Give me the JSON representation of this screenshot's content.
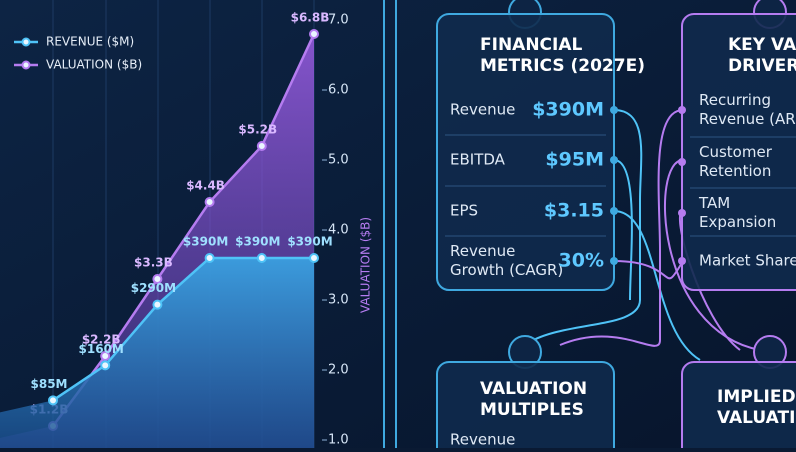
{
  "chart_data": {
    "type": "line",
    "categories": [
      null,
      null,
      null,
      null,
      null,
      null
    ],
    "series": [
      {
        "name": "REVENUE ($M)",
        "color": "#4fc3f7",
        "values": [
          85,
          160,
          290,
          390,
          390,
          390
        ],
        "value_labels": [
          "$85M",
          "$160M",
          "$290M",
          "$390M",
          "$390M",
          "$390M"
        ]
      },
      {
        "name": "VALUATION ($B)",
        "color": "#b57cf0",
        "axis": "y2",
        "values": [
          1.2,
          2.2,
          3.3,
          4.4,
          5.2,
          6.8
        ],
        "value_labels": [
          "$1.2B",
          "$2.2B",
          "$3.3B",
          "$4.4B",
          "$5.2B",
          "$6.8B"
        ]
      }
    ],
    "ylim": [
      0,
      900
    ],
    "y2lim": [
      1,
      7
    ],
    "y2ticks": [
      {
        "value": 1,
        "label": "1.0"
      },
      {
        "value": 2,
        "label": "2.0"
      },
      {
        "value": 3,
        "label": "3.0"
      },
      {
        "value": 4,
        "label": "4.0"
      },
      {
        "value": 5,
        "label": "5.0"
      },
      {
        "value": 6,
        "label": "6.0"
      },
      {
        "value": 7,
        "label": "7.0"
      }
    ],
    "y2label": "VALUATION ($B)",
    "legend": "top-left"
  },
  "cards": [
    {
      "title": [
        "FINANCIAL",
        "METRICS (2027E)"
      ],
      "rows": [
        {
          "label": [
            "Revenue"
          ],
          "value": "$390M"
        },
        {
          "label": [
            "EBITDA"
          ],
          "value": "$95M"
        },
        {
          "label": [
            "EPS"
          ],
          "value": "$3.15"
        },
        {
          "label": [
            "Revenue",
            "Growth (CAGR)"
          ],
          "value": "30%"
        }
      ]
    },
    {
      "title": [
        "KEY VAL",
        "DRIVER"
      ],
      "rows": [
        {
          "label": [
            "Recurring",
            "Revenue (ARR"
          ]
        },
        {
          "label": [
            "Customer",
            "Retention"
          ]
        },
        {
          "label": [
            "TAM",
            "Expansion"
          ]
        },
        {
          "label": [
            "Market Share"
          ]
        }
      ]
    },
    {
      "title": [
        "VALUATION",
        "MULTIPLES"
      ],
      "rows": [
        {
          "label": [
            "Revenue"
          ]
        }
      ]
    },
    {
      "title": [
        "IMPLIED EQ",
        "VALUATION ("
      ],
      "rows": []
    }
  ]
}
